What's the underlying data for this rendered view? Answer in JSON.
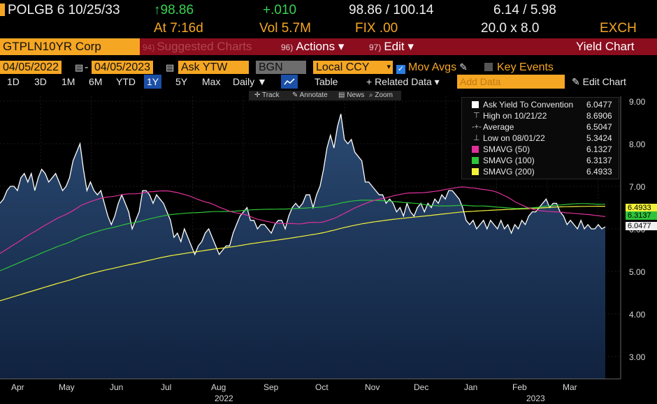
{
  "header": {
    "ticker": "POLGB 6 10/25/33",
    "price_up": "↑98.86",
    "change": "+.010",
    "bid_ask": "98.86 / 100.14",
    "yields": "6.14 / 5.98",
    "at_time": "At 7:16d",
    "volume": "Vol 5.7M",
    "fix": "FIX .00",
    "size": "20.0 x 8.0",
    "exch": "EXCH"
  },
  "toolbar": {
    "security": "GTPLN10YR Corp",
    "suggested_num": "94)",
    "suggested": "Suggested Charts",
    "actions_num": "96)",
    "actions": "Actions ▾",
    "edit_num": "97)",
    "edit": "Edit ▾",
    "title": "Yield Chart"
  },
  "settings": {
    "start_date": "04/05/2022",
    "end_date": "04/05/2023",
    "field": "Ask YTW",
    "source": "BGN",
    "currency": "Local CCY",
    "mov_avgs": "Mov Avgs",
    "key_events": "Key Events"
  },
  "ranges": {
    "items": [
      "1D",
      "3D",
      "1M",
      "6M",
      "YTD",
      "1Y",
      "5Y",
      "Max"
    ],
    "selected": "1Y",
    "period": "Daily ▼",
    "table": "Table",
    "related": "+ Related Data ▾",
    "add_data_placeholder": "Add Data",
    "edit_chart": "Edit Chart"
  },
  "chart_tools": {
    "track": "Track",
    "annotate": "Annotate",
    "news": "News",
    "zoom": "Zoom"
  },
  "chart_data": {
    "type": "area",
    "x_labels": [
      "Apr",
      "May",
      "Jun",
      "Jul",
      "Aug",
      "Sep",
      "Oct",
      "Nov",
      "Dec",
      "Jan",
      "Feb",
      "Mar"
    ],
    "year_labels": [
      "2022",
      "2023"
    ],
    "y_ticks": [
      "9.00",
      "8.00",
      "7.00",
      "6.00",
      "5.00",
      "4.00",
      "3.00"
    ],
    "ylim": [
      2.6,
      9.2
    ],
    "yield_series": [
      6.6,
      6.7,
      6.9,
      7.0,
      7.0,
      6.9,
      7.2,
      7.3,
      7.1,
      7.3,
      6.9,
      7.2,
      7.4,
      7.3,
      7.1,
      7.2,
      7.3,
      7.1,
      6.9,
      7.0,
      7.2,
      7.6,
      7.8,
      8.0,
      7.4,
      6.9,
      7.1,
      6.9,
      6.8,
      6.9,
      6.6,
      6.3,
      6.1,
      6.3,
      6.6,
      6.8,
      6.6,
      6.4,
      6.0,
      6.2,
      6.4,
      6.9,
      6.9,
      6.8,
      6.6,
      6.8,
      6.7,
      6.6,
      6.4,
      6.2,
      5.8,
      5.9,
      5.7,
      6.0,
      5.8,
      5.6,
      5.4,
      5.6,
      5.7,
      5.9,
      6.0,
      5.8,
      5.6,
      5.4,
      5.5,
      5.6,
      5.6,
      5.9,
      6.1,
      6.3,
      6.4,
      6.5,
      6.2,
      6.2,
      6.0,
      6.1,
      6.1,
      6.0,
      5.9,
      6.1,
      6.2,
      6.2,
      6.0,
      6.3,
      6.5,
      6.6,
      6.5,
      6.6,
      6.8,
      6.8,
      6.5,
      6.8,
      7.0,
      7.4,
      7.9,
      8.2,
      7.9,
      8.4,
      8.7,
      8.1,
      8.0,
      8.1,
      7.8,
      7.7,
      7.6,
      7.1,
      7.1,
      7.0,
      6.9,
      6.8,
      6.8,
      6.6,
      6.7,
      6.6,
      6.4,
      6.5,
      6.3,
      6.6,
      6.4,
      6.3,
      6.5,
      6.6,
      6.4,
      6.6,
      6.5,
      6.7,
      6.6,
      6.8,
      6.7,
      6.9,
      6.9,
      6.8,
      6.7,
      6.5,
      6.2,
      6.1,
      6.2,
      6.0,
      6.1,
      6.2,
      6.0,
      6.2,
      6.1,
      6.0,
      6.2,
      6.0,
      6.1,
      5.9,
      6.1,
      6.0,
      6.2,
      6.1,
      6.3,
      6.4,
      6.4,
      6.5,
      6.6,
      6.7,
      6.5,
      6.6,
      6.6,
      6.4,
      6.3,
      6.1,
      6.2,
      6.1,
      6.0,
      6.2,
      6.0,
      6.1,
      6.0,
      6.0,
      6.1,
      6.0,
      6.05
    ],
    "series": [
      {
        "name": "Ask Yield To Convention",
        "value": "6.0477",
        "color": "#ffffff"
      },
      {
        "name": "High on 10/21/22",
        "value": "8.6906"
      },
      {
        "name": "Average",
        "value": "6.5047"
      },
      {
        "name": "Low on 08/01/22",
        "value": "5.3424"
      },
      {
        "name": "SMAVG (50)",
        "value": "6.1327",
        "color": "#e0309a"
      },
      {
        "name": "SMAVG (100)",
        "value": "6.3137",
        "color": "#2ec43a"
      },
      {
        "name": "SMAVG (200)",
        "value": "6.4933",
        "color": "#f2f23a"
      }
    ],
    "last_tags": [
      "6.4933",
      "6.3137",
      "6.0477"
    ],
    "legend_placement": "top-right"
  }
}
